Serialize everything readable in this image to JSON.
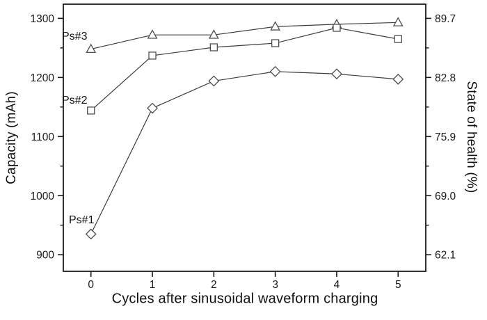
{
  "chart_data": {
    "type": "line",
    "title": "",
    "xlabel": "Cycles after sinusoidal waveform charging",
    "ylabel": "Capacity (mAh)",
    "y2label": "State of health (%)",
    "x": [
      0,
      1,
      2,
      3,
      4,
      5
    ],
    "series": [
      {
        "name": "Ps#3",
        "marker": "triangle",
        "values": [
          1248,
          1272,
          1272,
          1286,
          1290,
          1293
        ]
      },
      {
        "name": "Ps#2",
        "marker": "square",
        "values": [
          1144,
          1237,
          1251,
          1258,
          1284,
          1265
        ]
      },
      {
        "name": "Ps#1",
        "marker": "diamond",
        "values": [
          935,
          1148,
          1194,
          1210,
          1206,
          1197
        ]
      }
    ],
    "x_ticks": [
      0,
      1,
      2,
      3,
      4,
      5
    ],
    "y_ticks": [
      900,
      1000,
      1100,
      1200,
      1300
    ],
    "y_minor_ticks": [
      950,
      1050,
      1150,
      1250
    ],
    "y2_ticks": [
      62.1,
      69.0,
      75.9,
      82.8,
      89.7
    ],
    "xlim": [
      -0.45,
      5.45
    ],
    "ylim": [
      872,
      1324
    ],
    "grid": false,
    "legend": "inline labels next to first data points",
    "colors": {
      "line": "#3c3c3c",
      "marker_stroke": "#4d4d4d",
      "marker_fill": "#ffffff",
      "axis": "#1a1a1a",
      "text": "#1a1a1a",
      "background": "#ffffff"
    }
  }
}
